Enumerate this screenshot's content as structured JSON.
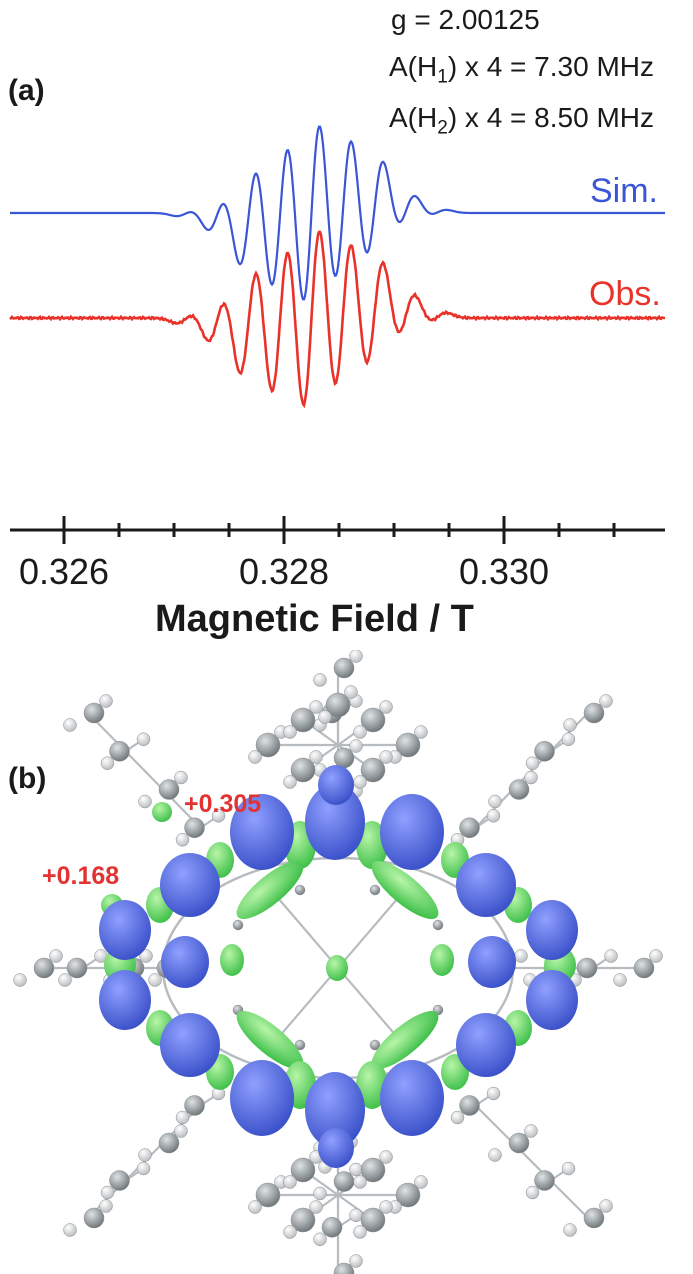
{
  "panel_a_label": "(a)",
  "panel_b_label": "(b)",
  "params": {
    "g": "g = 2.00125",
    "a1_prefix": "A(H",
    "a1_sub": "1",
    "a1_suffix": ") x 4 = 7.30 MHz",
    "a2_prefix": "A(H",
    "a2_sub": "2",
    "a2_suffix": ") x 4 = 8.50 MHz"
  },
  "chart_data": {
    "type": "line",
    "xlabel": "Magnetic Field / T",
    "xlim": [
      0.3255,
      0.3315
    ],
    "xticks_major": [
      "0.326",
      "0.328",
      "0.330"
    ],
    "xticks_major_values": [
      0.326,
      0.328,
      0.33
    ],
    "xticks_minor_values": [
      0.3265,
      0.327,
      0.3275,
      0.3285,
      0.329,
      0.3295,
      0.3305,
      0.331
    ],
    "center_field": 0.32825,
    "line_spacing_T": 0.000285,
    "linewidth_T": 8.5e-05,
    "series": [
      {
        "name": "Sim.",
        "color": "#3a55d6",
        "baseline_offset": 0.0,
        "amplitudes": [
          0.03,
          0.17,
          0.53,
          0.8,
          1.0,
          0.8,
          0.53,
          0.17,
          0.03
        ]
      },
      {
        "name": "Obs.",
        "color": "#e8322a",
        "baseline_offset": -1.0,
        "amplitudes": [
          0.05,
          0.23,
          0.58,
          0.82,
          1.0,
          0.82,
          0.58,
          0.23,
          0.05
        ]
      }
    ]
  },
  "spin_labels": [
    "+0.305",
    "+0.168"
  ],
  "colors": {
    "sim": "#3a55d6",
    "obs": "#e8322a",
    "lobe_blue": "#3b51c9",
    "lobe_green": "#3fc04a",
    "atom_c": "#9aa0a3",
    "atom_h": "#e6e8ea"
  }
}
